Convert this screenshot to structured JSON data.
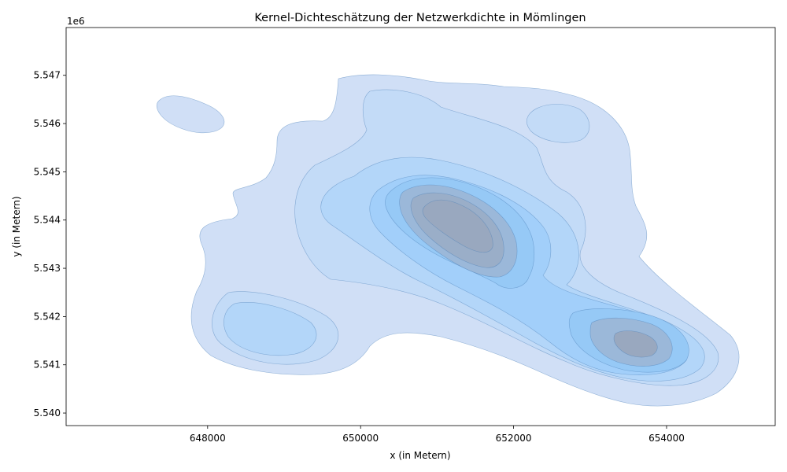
{
  "chart_data": {
    "type": "kde_contour",
    "title": "Kernel-Dichteschätzung der Netzwerkdichte in Mömlingen",
    "xlabel": "x (in Metern)",
    "ylabel": "y (in Metern)",
    "y_offset_label": "1e6",
    "xlim": [
      646150,
      655420
    ],
    "ylim": [
      5539740,
      5547990
    ],
    "x_ticks": [
      648000,
      650000,
      652000,
      654000
    ],
    "x_tick_labels": [
      "648000",
      "650000",
      "652000",
      "654000"
    ],
    "y_ticks": [
      5540000,
      5541000,
      5542000,
      5543000,
      5544000,
      5545000,
      5546000,
      5547000
    ],
    "y_tick_labels": [
      "5.540",
      "5.541",
      "5.542",
      "5.543",
      "5.544",
      "5.545",
      "5.546",
      "5.547"
    ],
    "grid": false,
    "fill_levels": [
      {
        "level": 1,
        "color": "#d0dff6"
      },
      {
        "level": 2,
        "color": "#c3dbf7"
      },
      {
        "level": 3,
        "color": "#b3d6f9"
      },
      {
        "level": 4,
        "color": "#a2cffa"
      },
      {
        "level": 5,
        "color": "#96c9f6"
      },
      {
        "level": 6,
        "color": "#9bb8d9"
      },
      {
        "level": 7,
        "color": "#9aaec8"
      },
      {
        "level": 8,
        "color": "#99a8bf"
      }
    ],
    "density_peaks": [
      {
        "x": 651200,
        "y": 5543800,
        "note": "main maximum"
      },
      {
        "x": 653450,
        "y": 5541400,
        "note": "secondary maximum"
      },
      {
        "x": 648900,
        "y": 5541750,
        "note": "minor mode"
      },
      {
        "x": 652550,
        "y": 5545950,
        "note": "minor mode"
      },
      {
        "x": 647700,
        "y": 5546200,
        "note": "isolated island"
      }
    ]
  }
}
